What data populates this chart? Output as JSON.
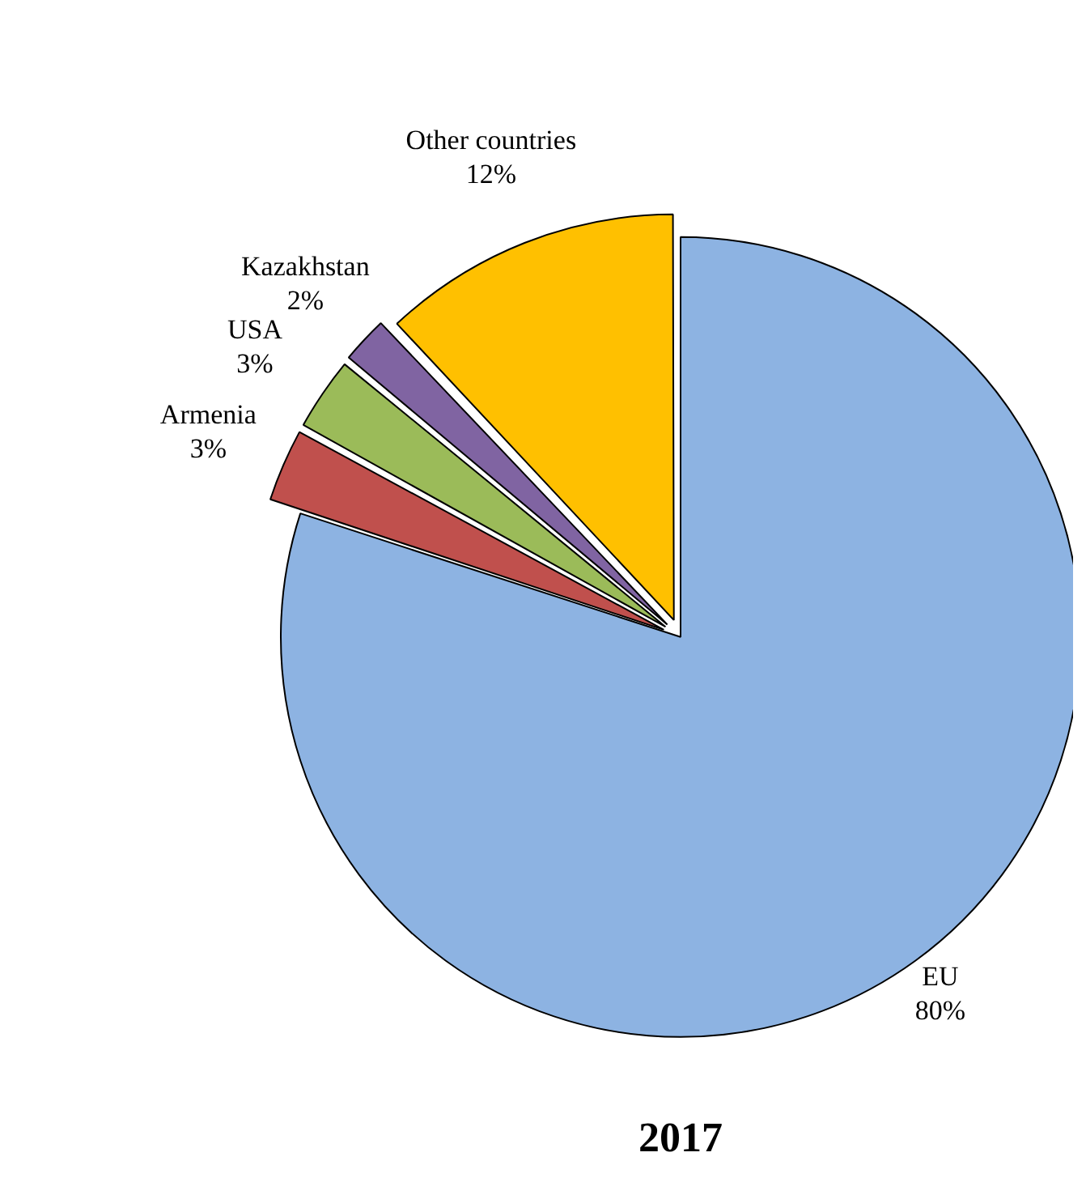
{
  "chart_data": {
    "type": "pie",
    "title": "2017",
    "categories": [
      "EU",
      "Armenia",
      "USA",
      "Kazakhstan",
      "Other countries"
    ],
    "values": [
      80,
      3,
      3,
      2,
      12
    ],
    "colors": [
      "#8db3e2",
      "#c0504d",
      "#9bbb59",
      "#8064a2",
      "#ffc000"
    ],
    "value_labels": [
      "80%",
      "3%",
      "3%",
      "2%",
      "12%"
    ],
    "legend": false
  }
}
